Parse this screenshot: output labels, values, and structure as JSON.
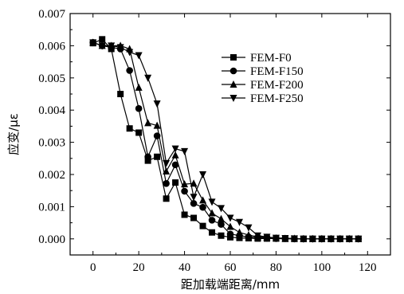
{
  "chart_data": {
    "type": "line",
    "title": "",
    "xlabel": "距加载端距离/mm",
    "ylabel": "应变/με",
    "xlim": [
      -10,
      130
    ],
    "ylim": [
      -0.0005,
      0.007
    ],
    "x_ticks": [
      0,
      20,
      40,
      60,
      80,
      100,
      120
    ],
    "x_tick_labels": [
      "0",
      "20",
      "40",
      "60",
      "80",
      "100",
      "120"
    ],
    "y_ticks": [
      0,
      0.001,
      0.002,
      0.003,
      0.004,
      0.005,
      0.006,
      0.007
    ],
    "y_tick_labels": [
      "0.000",
      "0.001",
      "0.002",
      "0.003",
      "0.004",
      "0.005",
      "0.006",
      "0.007"
    ],
    "grid": false,
    "legend_position": "right",
    "series": [
      {
        "name": "FEM-F0",
        "marker": "square",
        "x": [
          0,
          4,
          8,
          12,
          16,
          20,
          24,
          28,
          32,
          36,
          40,
          44,
          48,
          52,
          56,
          60,
          64,
          68,
          72,
          76,
          80,
          84,
          88,
          92,
          96,
          100,
          104,
          108,
          112,
          116
        ],
        "y": [
          0.00608,
          0.0062,
          0.0059,
          0.0045,
          0.00343,
          0.0033,
          0.00243,
          0.00255,
          0.00125,
          0.00175,
          0.00075,
          0.00065,
          0.0004,
          0.0002,
          0.0001,
          5e-05,
          3e-05,
          2e-05,
          1e-05,
          1e-05,
          1e-05,
          0,
          0,
          0,
          0,
          0,
          0,
          0,
          0,
          0
        ]
      },
      {
        "name": "FEM-F150",
        "marker": "circle",
        "x": [
          0,
          4,
          8,
          12,
          16,
          20,
          24,
          28,
          32,
          36,
          40,
          44,
          48,
          52,
          56,
          60,
          64,
          68,
          72,
          76,
          80,
          84,
          88,
          92,
          96,
          100,
          104,
          108,
          112,
          116
        ],
        "y": [
          0.0061,
          0.006,
          0.00595,
          0.0059,
          0.00523,
          0.00405,
          0.00255,
          0.0032,
          0.00172,
          0.0023,
          0.00148,
          0.0011,
          0.00098,
          0.00058,
          0.00045,
          0.00015,
          0.0001,
          6e-05,
          4e-05,
          2e-05,
          1e-05,
          1e-05,
          0,
          0,
          0,
          0,
          0,
          0,
          0,
          0
        ]
      },
      {
        "name": "FEM-F200",
        "marker": "triangle-up",
        "x": [
          0,
          4,
          8,
          12,
          16,
          20,
          24,
          28,
          32,
          36,
          40,
          44,
          48,
          52,
          56,
          60,
          64,
          68,
          72,
          76,
          80,
          84,
          88,
          92,
          96,
          100,
          104,
          108,
          112,
          116
        ],
        "y": [
          0.0061,
          0.006,
          0.006,
          0.006,
          0.0059,
          0.0047,
          0.0036,
          0.00352,
          0.0021,
          0.0026,
          0.0017,
          0.00172,
          0.0012,
          0.0008,
          0.00062,
          0.00038,
          0.0002,
          0.00012,
          6e-05,
          4e-05,
          2e-05,
          1e-05,
          1e-05,
          0,
          0,
          0,
          0,
          0,
          0,
          0
        ]
      },
      {
        "name": "FEM-F250",
        "marker": "triangle-down",
        "x": [
          0,
          4,
          8,
          12,
          16,
          20,
          24,
          28,
          32,
          36,
          40,
          44,
          48,
          52,
          56,
          60,
          64,
          68,
          72,
          76,
          80,
          84,
          88,
          92,
          96,
          100,
          104,
          108,
          112,
          116
        ],
        "y": [
          0.0061,
          0.006,
          0.006,
          0.00595,
          0.0058,
          0.0057,
          0.005,
          0.0042,
          0.00235,
          0.0028,
          0.00272,
          0.0013,
          0.002,
          0.00115,
          0.00095,
          0.00065,
          0.00052,
          0.00035,
          0.0001,
          6e-05,
          3e-05,
          2e-05,
          1e-05,
          0,
          0,
          0,
          0,
          0,
          0,
          0
        ]
      }
    ]
  }
}
